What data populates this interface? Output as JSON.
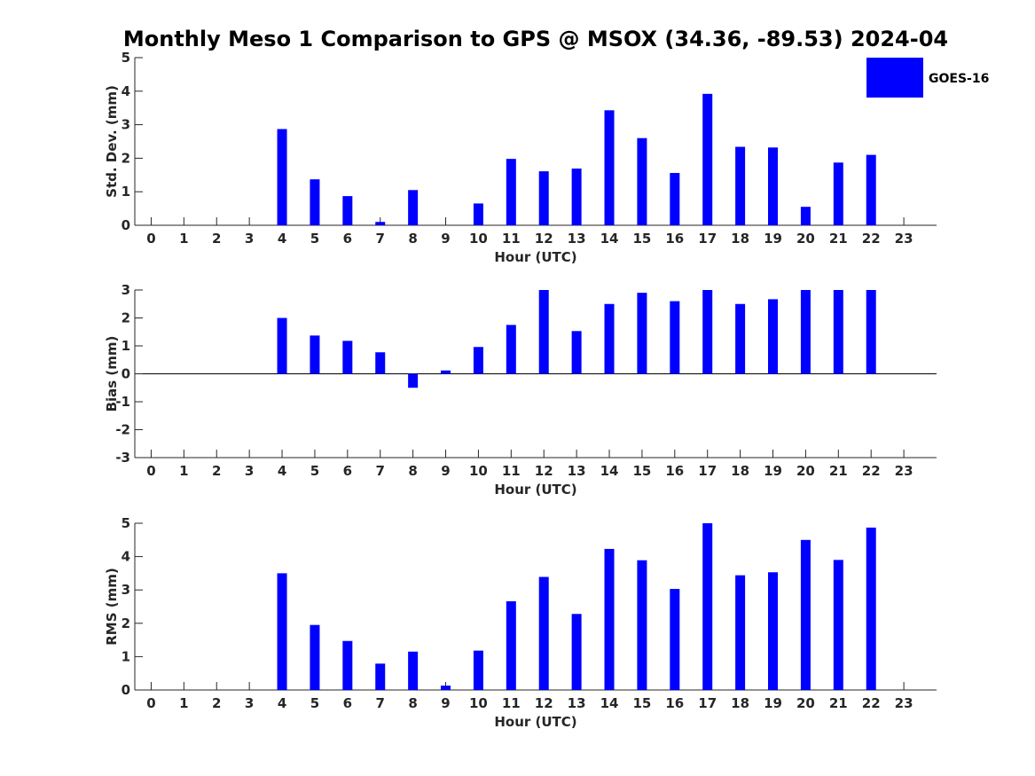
{
  "title": "Monthly Meso 1 Comparison to GPS @ MSOX (34.36, -89.53) 2024-04",
  "colors": {
    "bar": "#0000ff",
    "axis": "#262626"
  },
  "legend": {
    "label": "GOES-16",
    "placement": "top-right"
  },
  "chart_data": [
    {
      "type": "bar",
      "xlabel": "Hour (UTC)",
      "ylabel": "Std. Dev. (mm)",
      "ylim": [
        0,
        5
      ],
      "yticks": [
        "0",
        "1",
        "2",
        "3",
        "4",
        "5"
      ],
      "categories": [
        "0",
        "1",
        "2",
        "3",
        "4",
        "5",
        "6",
        "7",
        "8",
        "9",
        "10",
        "11",
        "12",
        "13",
        "14",
        "15",
        "16",
        "17",
        "18",
        "19",
        "20",
        "21",
        "22",
        "23"
      ],
      "series": [
        {
          "name": "GOES-16",
          "values": [
            null,
            null,
            null,
            null,
            2.87,
            1.37,
            0.87,
            0.1,
            1.05,
            null,
            0.65,
            1.98,
            1.61,
            1.69,
            3.43,
            2.6,
            1.56,
            3.92,
            2.34,
            2.32,
            0.55,
            1.87,
            2.1,
            null
          ]
        }
      ],
      "grid": false
    },
    {
      "type": "bar",
      "xlabel": "Hour (UTC)",
      "ylabel": "Bias (mm)",
      "ylim": [
        -3,
        3
      ],
      "yticks": [
        "-3",
        "-2",
        "-1",
        "0",
        "1",
        "2",
        "3"
      ],
      "categories": [
        "0",
        "1",
        "2",
        "3",
        "4",
        "5",
        "6",
        "7",
        "8",
        "9",
        "10",
        "11",
        "12",
        "13",
        "14",
        "15",
        "16",
        "17",
        "18",
        "19",
        "20",
        "21",
        "22",
        "23"
      ],
      "series": [
        {
          "name": "GOES-16",
          "values": [
            null,
            null,
            null,
            null,
            2.0,
            1.37,
            1.18,
            0.77,
            -0.5,
            0.12,
            0.96,
            1.75,
            3.0,
            1.53,
            2.5,
            2.9,
            2.6,
            3.0,
            2.5,
            2.67,
            3.0,
            3.0,
            3.0,
            null
          ]
        }
      ],
      "grid": false
    },
    {
      "type": "bar",
      "xlabel": "Hour (UTC)",
      "ylabel": "RMS (mm)",
      "ylim": [
        0,
        5
      ],
      "yticks": [
        "0",
        "1",
        "2",
        "3",
        "4",
        "5"
      ],
      "categories": [
        "0",
        "1",
        "2",
        "3",
        "4",
        "5",
        "6",
        "7",
        "8",
        "9",
        "10",
        "11",
        "12",
        "13",
        "14",
        "15",
        "16",
        "17",
        "18",
        "19",
        "20",
        "21",
        "22",
        "23"
      ],
      "series": [
        {
          "name": "GOES-16",
          "values": [
            null,
            null,
            null,
            null,
            3.5,
            1.95,
            1.47,
            0.79,
            1.15,
            0.13,
            1.18,
            2.66,
            3.39,
            2.28,
            4.23,
            3.89,
            3.03,
            5.0,
            3.44,
            3.53,
            4.5,
            3.9,
            4.87,
            null
          ]
        }
      ],
      "grid": false
    }
  ]
}
